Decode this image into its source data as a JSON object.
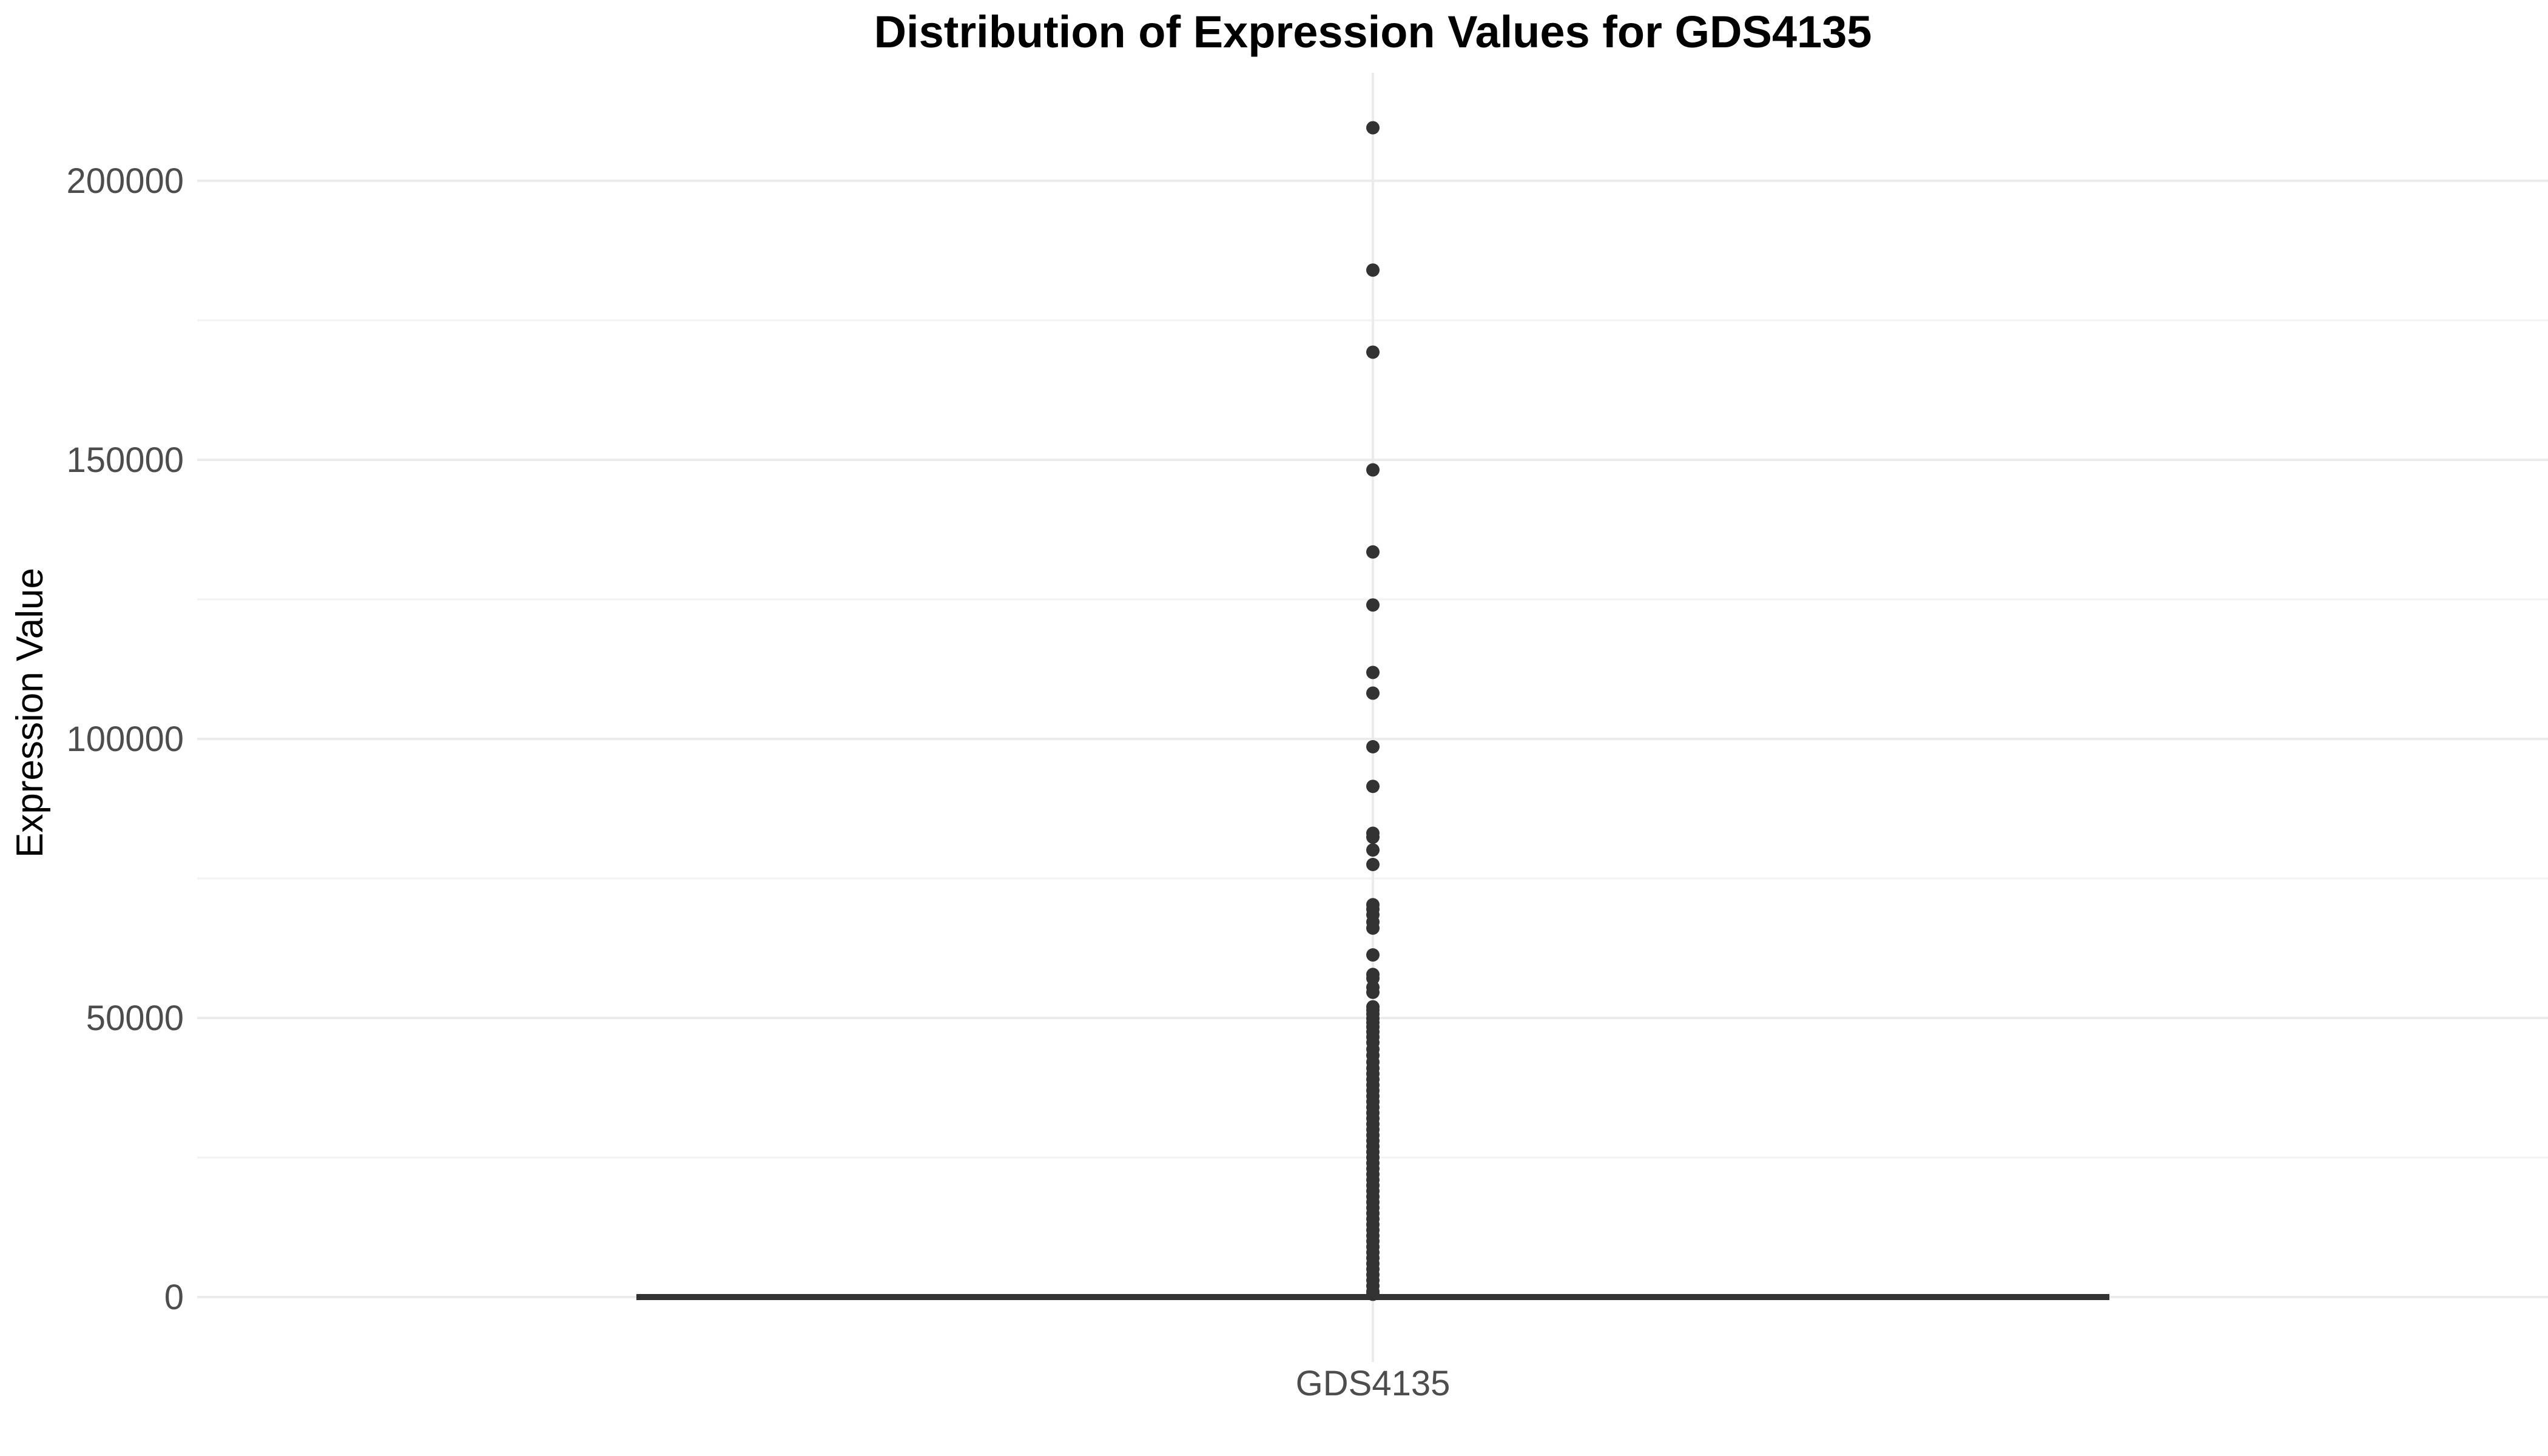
{
  "chart_data": {
    "type": "box",
    "title": "Distribution of Expression Values for GDS4135",
    "xlabel": "",
    "ylabel": "Expression Value",
    "categories": [
      "GDS4135"
    ],
    "ylim": [
      -8000,
      220000
    ],
    "y_ticks": [
      0,
      50000,
      100000,
      150000,
      200000
    ],
    "y_minor_ticks": [
      25000,
      75000,
      125000,
      175000
    ],
    "grid": true,
    "box": {
      "category": "GDS4135",
      "min": 0,
      "q1": 0,
      "median": 0,
      "q3": 0,
      "max": 0
    },
    "outliers": [
      209500,
      184000,
      169300,
      148200,
      133500,
      124000,
      111900,
      108200,
      98600,
      91500,
      83100,
      82400,
      80100,
      77500,
      70300,
      69500,
      68500,
      67200,
      66100,
      61300,
      57800,
      57100,
      55500,
      54600,
      52000,
      51400,
      50700,
      49900,
      49200,
      48400,
      47500,
      46600,
      45600,
      44400,
      43300,
      42100,
      41000,
      40000,
      39000,
      38000,
      37000,
      36000,
      35000,
      34000,
      33000,
      32000,
      31000,
      30000,
      29000,
      28000,
      27000,
      26000,
      25000,
      24000,
      23000,
      22000,
      21000,
      20000,
      19000,
      18000,
      17000,
      16000,
      15000,
      14000,
      13000,
      12000,
      11000,
      10000,
      9000,
      8000,
      7000,
      6000,
      5000,
      4000,
      3000,
      2000,
      1000,
      500
    ]
  }
}
